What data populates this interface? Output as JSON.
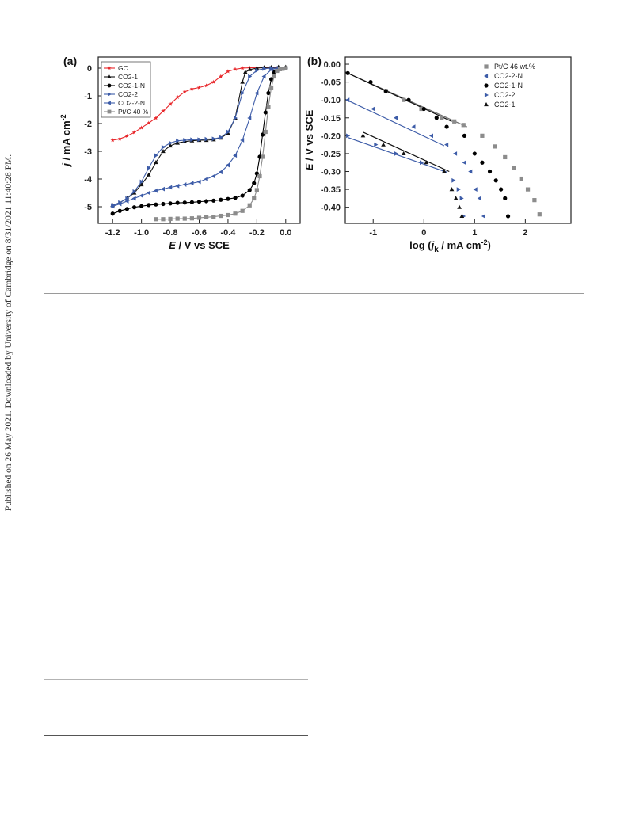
{
  "sidebar": {
    "text": "Published on 26 May 2021. Downloaded by University of Cambridge on 8/31/2021 11:40:28 PM."
  },
  "chart_data": [
    {
      "panel_label": "(a)",
      "type": "line",
      "xlabel_italic": "E",
      "xlabel_rest": " / V vs SCE",
      "ylabel_italic": "j",
      "ylabel_rest": " / mA cm",
      "ylabel_sup": "-2",
      "xlim": [
        -1.3,
        0.1
      ],
      "ylim": [
        -5.6,
        0.4
      ],
      "xticks": [
        -1.2,
        -1.0,
        -0.8,
        -0.6,
        -0.4,
        -0.2,
        0.0
      ],
      "xtick_labels": [
        "-1.2",
        "-1.0",
        "-0.8",
        "-0.6",
        "-0.4",
        "-0.2",
        "0.0"
      ],
      "yticks": [
        0,
        -1,
        -2,
        -3,
        -4,
        -5
      ],
      "ytick_labels": [
        "0",
        "-1",
        "-2",
        "-3",
        "-4",
        "-5"
      ],
      "legend_position": "top-left",
      "series": [
        {
          "name": "GC",
          "color": "#e8262a",
          "marker": "star",
          "x": [
            -1.2,
            -1.15,
            -1.1,
            -1.05,
            -1.0,
            -0.95,
            -0.9,
            -0.85,
            -0.8,
            -0.75,
            -0.7,
            -0.65,
            -0.6,
            -0.55,
            -0.5,
            -0.45,
            -0.4,
            -0.35,
            -0.3,
            -0.25,
            -0.2,
            -0.15,
            -0.1,
            -0.05,
            0.0
          ],
          "y": [
            -2.6,
            -2.55,
            -2.45,
            -2.32,
            -2.15,
            -1.98,
            -1.8,
            -1.55,
            -1.3,
            -1.05,
            -0.85,
            -0.75,
            -0.7,
            -0.63,
            -0.5,
            -0.3,
            -0.12,
            -0.04,
            0.0,
            0.01,
            0.02,
            0.02,
            0.02,
            0.02,
            0.02
          ]
        },
        {
          "name": "CO2-1",
          "color": "#111111",
          "marker": "triangle-up",
          "x": [
            -1.2,
            -1.15,
            -1.1,
            -1.05,
            -1.0,
            -0.95,
            -0.9,
            -0.85,
            -0.8,
            -0.75,
            -0.7,
            -0.65,
            -0.6,
            -0.55,
            -0.5,
            -0.45,
            -0.4,
            -0.35,
            -0.3,
            -0.28,
            -0.25,
            -0.2,
            -0.15,
            -0.1,
            -0.05,
            0.0
          ],
          "y": [
            -4.95,
            -4.85,
            -4.7,
            -4.5,
            -4.2,
            -3.85,
            -3.4,
            -3.0,
            -2.8,
            -2.7,
            -2.65,
            -2.62,
            -2.6,
            -2.6,
            -2.58,
            -2.52,
            -2.35,
            -1.8,
            -0.5,
            -0.15,
            -0.05,
            0.0,
            0.02,
            0.03,
            0.04,
            0.04
          ]
        },
        {
          "name": "CO2-1-N",
          "color": "#000000",
          "marker": "circle",
          "x": [
            -1.2,
            -1.15,
            -1.1,
            -1.05,
            -1.0,
            -0.95,
            -0.9,
            -0.85,
            -0.8,
            -0.75,
            -0.7,
            -0.65,
            -0.6,
            -0.55,
            -0.5,
            -0.45,
            -0.4,
            -0.35,
            -0.3,
            -0.25,
            -0.22,
            -0.2,
            -0.18,
            -0.16,
            -0.14,
            -0.12,
            -0.1,
            -0.08,
            -0.05,
            -0.02,
            0.0
          ],
          "y": [
            -5.25,
            -5.15,
            -5.08,
            -5.02,
            -4.98,
            -4.94,
            -4.92,
            -4.9,
            -4.88,
            -4.86,
            -4.85,
            -4.84,
            -4.82,
            -4.8,
            -4.78,
            -4.75,
            -4.72,
            -4.68,
            -4.6,
            -4.4,
            -4.15,
            -3.8,
            -3.2,
            -2.4,
            -1.6,
            -0.9,
            -0.4,
            -0.15,
            -0.05,
            -0.02,
            0.0
          ]
        },
        {
          "name": "CO2-2",
          "color": "#3d5ca8",
          "marker": "triangle-right",
          "x": [
            -1.2,
            -1.15,
            -1.1,
            -1.05,
            -1.0,
            -0.95,
            -0.9,
            -0.85,
            -0.8,
            -0.75,
            -0.7,
            -0.65,
            -0.6,
            -0.55,
            -0.5,
            -0.45,
            -0.4,
            -0.35,
            -0.3,
            -0.25,
            -0.2,
            -0.15,
            -0.1,
            -0.05,
            0.0
          ],
          "y": [
            -4.95,
            -4.85,
            -4.7,
            -4.45,
            -4.1,
            -3.6,
            -3.15,
            -2.85,
            -2.7,
            -2.62,
            -2.6,
            -2.58,
            -2.58,
            -2.56,
            -2.55,
            -2.5,
            -2.3,
            -1.8,
            -0.9,
            -0.3,
            -0.08,
            -0.02,
            0.0,
            0.0,
            0.0
          ]
        },
        {
          "name": "CO2-2-N",
          "color": "#3d5ca8",
          "marker": "triangle-left",
          "x": [
            -1.2,
            -1.15,
            -1.1,
            -1.05,
            -1.0,
            -0.95,
            -0.9,
            -0.85,
            -0.8,
            -0.75,
            -0.7,
            -0.65,
            -0.6,
            -0.55,
            -0.5,
            -0.45,
            -0.4,
            -0.35,
            -0.3,
            -0.25,
            -0.2,
            -0.15,
            -0.1,
            -0.05,
            0.0
          ],
          "y": [
            -4.98,
            -4.9,
            -4.8,
            -4.7,
            -4.6,
            -4.5,
            -4.42,
            -4.36,
            -4.3,
            -4.25,
            -4.2,
            -4.15,
            -4.1,
            -4.0,
            -3.9,
            -3.75,
            -3.5,
            -3.15,
            -2.6,
            -1.8,
            -0.9,
            -0.3,
            -0.05,
            0.0,
            0.0
          ]
        },
        {
          "name": "Pt/C 40 %",
          "color": "#8c8c8c",
          "marker": "square",
          "x": [
            -0.9,
            -0.85,
            -0.8,
            -0.75,
            -0.7,
            -0.65,
            -0.6,
            -0.55,
            -0.5,
            -0.45,
            -0.4,
            -0.35,
            -0.3,
            -0.25,
            -0.22,
            -0.2,
            -0.18,
            -0.16,
            -0.14,
            -0.12,
            -0.1,
            -0.08,
            -0.06,
            -0.04,
            -0.02,
            0.0
          ],
          "y": [
            -5.45,
            -5.45,
            -5.44,
            -5.43,
            -5.43,
            -5.42,
            -5.4,
            -5.38,
            -5.36,
            -5.33,
            -5.3,
            -5.25,
            -5.15,
            -4.95,
            -4.7,
            -4.4,
            -3.9,
            -3.2,
            -2.3,
            -1.4,
            -0.7,
            -0.3,
            -0.1,
            -0.04,
            -0.02,
            0.0
          ]
        }
      ]
    },
    {
      "panel_label": "(b)",
      "type": "scatter",
      "xlabel_pre": "log (",
      "xlabel_italic": "j",
      "xlabel_sub": "k",
      "xlabel_post": " / mA cm",
      "xlabel_sup": "-2",
      "xlabel_close": ")",
      "ylabel_italic": "E",
      "ylabel_rest": " / V vs SCE",
      "xlim": [
        -1.55,
        2.9
      ],
      "ylim": [
        -0.445,
        0.02
      ],
      "xticks": [
        -1,
        0,
        1,
        2
      ],
      "xtick_labels": [
        "-1",
        "0",
        "1",
        "2"
      ],
      "yticks": [
        0.0,
        -0.05,
        -0.1,
        -0.15,
        -0.2,
        -0.25,
        -0.3,
        -0.35,
        -0.4
      ],
      "ytick_labels": [
        "0.00",
        "-0.05",
        "-0.10",
        "-0.15",
        "-0.20",
        "-0.25",
        "-0.30",
        "-0.35",
        "-0.40"
      ],
      "legend_position": "top-right",
      "series": [
        {
          "name": "Pt/C 46 wt.%",
          "color": "#8c8c8c",
          "marker": "square",
          "x": [
            -0.75,
            -0.4,
            -0.05,
            0.35,
            0.6,
            0.78,
            1.15,
            1.4,
            1.6,
            1.78,
            1.92,
            2.05,
            2.18,
            2.28
          ],
          "y": [
            -0.075,
            -0.1,
            -0.125,
            -0.15,
            -0.16,
            -0.17,
            -0.2,
            -0.23,
            -0.26,
            -0.29,
            -0.32,
            -0.35,
            -0.38,
            -0.42
          ]
        },
        {
          "name": "CO2-2-N",
          "color": "#3d5ca8",
          "marker": "triangle-left",
          "x": [
            -1.5,
            -1.0,
            -0.55,
            -0.2,
            0.15,
            0.45,
            0.62,
            0.8,
            0.92,
            1.02,
            1.1,
            1.18
          ],
          "y": [
            -0.1,
            -0.125,
            -0.15,
            -0.175,
            -0.2,
            -0.225,
            -0.25,
            -0.275,
            -0.3,
            -0.35,
            -0.375,
            -0.425
          ]
        },
        {
          "name": "CO2-1-N",
          "color": "#000000",
          "marker": "circle",
          "x": [
            -1.5,
            -1.05,
            -0.75,
            -0.3,
            0.0,
            0.25,
            0.45,
            0.8,
            1.0,
            1.15,
            1.3,
            1.42,
            1.52,
            1.6,
            1.66
          ],
          "y": [
            -0.025,
            -0.05,
            -0.075,
            -0.1,
            -0.125,
            -0.15,
            -0.175,
            -0.2,
            -0.25,
            -0.275,
            -0.3,
            -0.325,
            -0.35,
            -0.375,
            -0.425
          ]
        },
        {
          "name": "CO2-2",
          "color": "#3d5ca8",
          "marker": "triangle-right",
          "x": [
            -1.5,
            -0.95,
            -0.55,
            -0.05,
            0.4,
            0.58,
            0.68,
            0.74,
            0.78
          ],
          "y": [
            -0.2,
            -0.225,
            -0.25,
            -0.275,
            -0.3,
            -0.325,
            -0.35,
            -0.375,
            -0.425
          ]
        },
        {
          "name": "CO2-1",
          "color": "#111111",
          "marker": "triangle-up",
          "x": [
            -1.2,
            -0.8,
            -0.4,
            0.05,
            0.4,
            0.55,
            0.63,
            0.7,
            0.75
          ],
          "y": [
            -0.2,
            -0.225,
            -0.25,
            -0.275,
            -0.3,
            -0.35,
            -0.375,
            -0.4,
            -0.425
          ]
        }
      ],
      "fits": [
        {
          "color": "#6e6e6e",
          "x": [
            -1.55,
            0.85
          ],
          "y": [
            -0.022,
            -0.175
          ]
        },
        {
          "color": "#111111",
          "x": [
            -1.55,
            0.55
          ],
          "y": [
            -0.022,
            -0.16
          ]
        },
        {
          "color": "#3d5ca8",
          "x": [
            -1.55,
            0.4
          ],
          "y": [
            -0.098,
            -0.228
          ]
        },
        {
          "color": "#3d5ca8",
          "x": [
            -1.5,
            0.45
          ],
          "y": [
            -0.205,
            -0.302
          ]
        },
        {
          "color": "#111111",
          "x": [
            -1.2,
            0.5
          ],
          "y": [
            -0.19,
            -0.3
          ]
        }
      ]
    }
  ]
}
